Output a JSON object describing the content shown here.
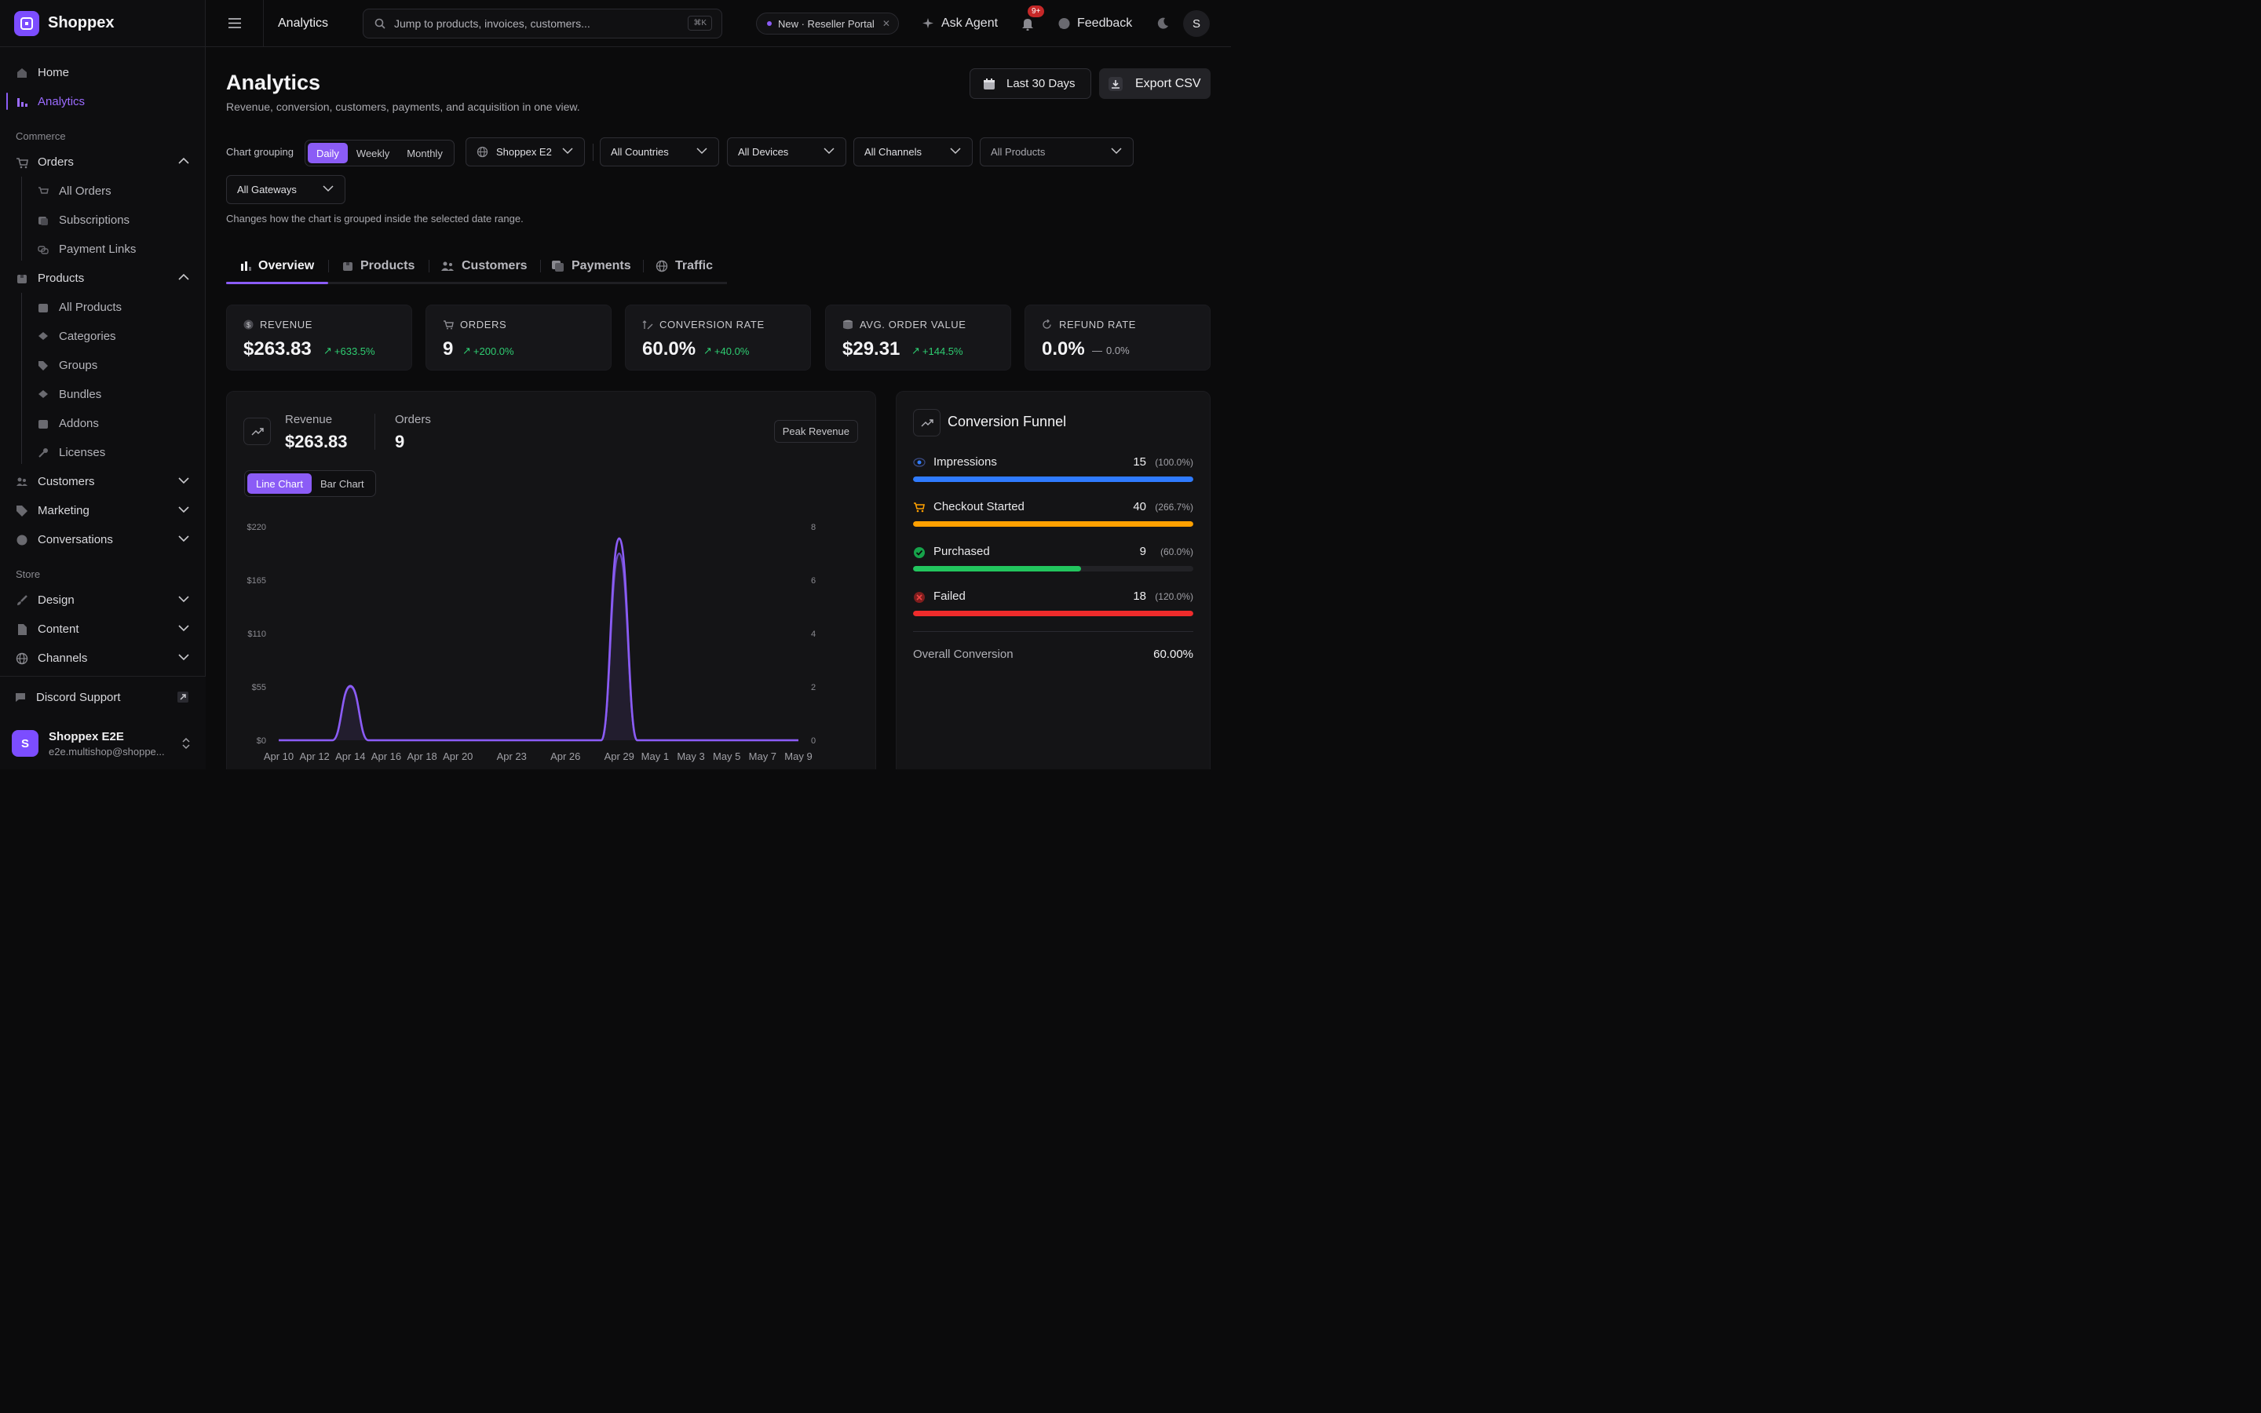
{
  "brand": {
    "name": "Shoppex"
  },
  "sidebar": {
    "home": "Home",
    "analytics": "Analytics",
    "section_commerce": "Commerce",
    "orders": "Orders",
    "orders_sub": [
      "All Orders",
      "Subscriptions",
      "Payment Links"
    ],
    "products": "Products",
    "products_sub": [
      "All Products",
      "Categories",
      "Groups",
      "Bundles",
      "Addons",
      "Licenses"
    ],
    "customers": "Customers",
    "marketing": "Marketing",
    "conversations": "Conversations",
    "section_store": "Store",
    "design": "Design",
    "content": "Content",
    "channels": "Channels",
    "discord": "Discord Support",
    "user_name": "Shoppex E2E",
    "user_email": "e2e.multishop@shoppe...",
    "user_initial": "S"
  },
  "topbar": {
    "title": "Analytics",
    "search_placeholder": "Jump to products, invoices, customers...",
    "search_kbd": "⌘K",
    "pill": "New · Reseller Portal",
    "ask_agent": "Ask Agent",
    "notif_badge": "9+",
    "feedback": "Feedback",
    "avatar": "S"
  },
  "page": {
    "title": "Analytics",
    "subtitle": "Revenue, conversion, customers, payments, and acquisition in one view.",
    "date_range": "Last 30 Days",
    "export": "Export CSV",
    "grouping_label": "Chart grouping",
    "grouping": [
      "Daily",
      "Weekly",
      "Monthly"
    ],
    "shop": "Shoppex E2",
    "countries": "All Countries",
    "devices": "All Devices",
    "channels": "All Channels",
    "products": "All Products",
    "gateways": "All Gateways",
    "hint": "Changes how the chart is grouped inside the selected date range.",
    "tabs": [
      "Overview",
      "Products",
      "Customers",
      "Payments",
      "Traffic"
    ]
  },
  "kpis": [
    {
      "label": "REVENUE",
      "value": "$263.83",
      "delta": "+633.5%"
    },
    {
      "label": "ORDERS",
      "value": "9",
      "delta": "+200.0%"
    },
    {
      "label": "CONVERSION RATE",
      "value": "60.0%",
      "delta": "+40.0%"
    },
    {
      "label": "AVG. ORDER VALUE",
      "value": "$29.31",
      "delta": "+144.5%"
    },
    {
      "label": "REFUND RATE",
      "value": "0.0%",
      "delta": "0.0%"
    }
  ],
  "chart_panel": {
    "revenue_label": "Revenue",
    "revenue_value": "$263.83",
    "orders_label": "Orders",
    "orders_value": "9",
    "peak": "Peak Revenue",
    "chart_types": [
      "Line Chart",
      "Bar Chart"
    ]
  },
  "chart_data": {
    "type": "line",
    "x": [
      "Apr 10",
      "Apr 11",
      "Apr 12",
      "Apr 13",
      "Apr 14",
      "Apr 15",
      "Apr 16",
      "Apr 17",
      "Apr 18",
      "Apr 19",
      "Apr 20",
      "Apr 21",
      "Apr 22",
      "Apr 23",
      "Apr 24",
      "Apr 25",
      "Apr 26",
      "Apr 27",
      "Apr 28",
      "Apr 29",
      "Apr 30",
      "May 1",
      "May 2",
      "May 3",
      "May 4",
      "May 5",
      "May 6",
      "May 7",
      "May 8",
      "May 9"
    ],
    "x_tick_labels": [
      "Apr 10",
      "Apr 12",
      "Apr 14",
      "Apr 16",
      "Apr 18",
      "Apr 20",
      "Apr 23",
      "Apr 26",
      "Apr 29",
      "May 1",
      "May 3",
      "May 5",
      "May 7",
      "May 9"
    ],
    "series": [
      {
        "values": [
          0,
          0,
          0,
          0,
          56,
          0,
          0,
          0,
          0,
          0,
          0,
          0,
          0,
          0,
          0,
          0,
          0,
          0,
          0,
          208,
          0,
          0,
          0,
          0,
          0,
          0,
          0,
          0,
          0,
          0
        ],
        "color": "#8b5cf6"
      },
      {
        "values": [
          0,
          0,
          0,
          0,
          2,
          0,
          0,
          0,
          0,
          0,
          0,
          0,
          0,
          0,
          0,
          0,
          0,
          0,
          0,
          7,
          0,
          0,
          0,
          0,
          0,
          0,
          0,
          0,
          0,
          0
        ],
        "color": "#6d4bc8"
      }
    ],
    "y_left": {
      "min": 0,
      "max": 220,
      "ticks": [
        "$0",
        "$55",
        "$110",
        "$165",
        "$220"
      ]
    },
    "y_right": {
      "min": 0,
      "max": 8,
      "ticks": [
        "0",
        "2",
        "4",
        "6",
        "8"
      ]
    },
    "grid": false
  },
  "funnel": {
    "title": "Conversion Funnel",
    "rows": [
      {
        "name": "Impressions",
        "value": "15",
        "pct": "(100.0%)",
        "fill": 100,
        "color": "#2f7bff"
      },
      {
        "name": "Checkout Started",
        "value": "40",
        "pct": "(266.7%)",
        "fill": 100,
        "color": "#ffa000"
      },
      {
        "name": "Purchased",
        "value": "9",
        "pct": "(60.0%)",
        "fill": 60,
        "color": "#22c55e"
      },
      {
        "name": "Failed",
        "value": "18",
        "pct": "(120.0%)",
        "fill": 100,
        "color": "#ef2b2b"
      }
    ],
    "overall_label": "Overall Conversion",
    "overall_value": "60.00%"
  }
}
